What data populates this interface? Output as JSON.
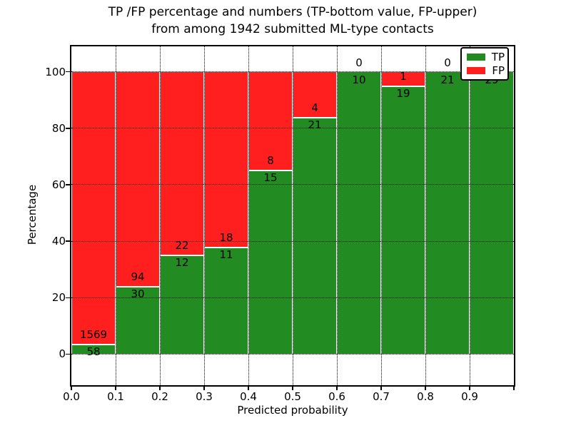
{
  "title": {
    "line1": "TP /FP percentage and numbers (TP-bottom value, FP-upper)",
    "line2": "from among 1942 submitted ML-type contacts"
  },
  "chart_data": {
    "type": "bar",
    "stacked": true,
    "normalized": "percent",
    "title": "TP /FP percentage and numbers (TP-bottom value, FP-upper)\nfrom among 1942 submitted ML-type contacts",
    "xlabel": "Predicted probability",
    "ylabel": "Percentage",
    "total_contacts": 1942,
    "categories": [
      "0.0-0.1",
      "0.1-0.2",
      "0.2-0.3",
      "0.3-0.4",
      "0.4-0.5",
      "0.5-0.6",
      "0.6-0.7",
      "0.7-0.8",
      "0.8-0.9",
      "0.9-1.0"
    ],
    "bin_width": 0.1,
    "series": [
      {
        "name": "TP",
        "color": "#228b22",
        "values": [
          58,
          30,
          12,
          11,
          15,
          21,
          10,
          19,
          21,
          29
        ]
      },
      {
        "name": "FP",
        "color": "#ff1f1f",
        "values": [
          1569,
          94,
          22,
          18,
          8,
          4,
          0,
          1,
          0,
          0
        ]
      }
    ],
    "bar_value_labels": {
      "tp_position": "below boundary (bottom value)",
      "fp_position": "above boundary (upper value)"
    },
    "x_tick_labels": [
      "0.0",
      "0.1",
      "0.2",
      "0.3",
      "0.4",
      "0.5",
      "0.6",
      "0.7",
      "0.8",
      "0.9"
    ],
    "y_ticks": [
      0,
      20,
      40,
      60,
      80,
      100
    ],
    "y_tick_labels": [
      "0",
      "20",
      "40",
      "60",
      "80",
      "100"
    ],
    "xlim": [
      0.0,
      1.0
    ],
    "ylim": [
      -11,
      109
    ],
    "grid": "dotted",
    "legend": {
      "position": "upper right",
      "entries": [
        {
          "label": "TP",
          "color": "#228b22"
        },
        {
          "label": "FP",
          "color": "#ff1f1f"
        }
      ]
    }
  }
}
